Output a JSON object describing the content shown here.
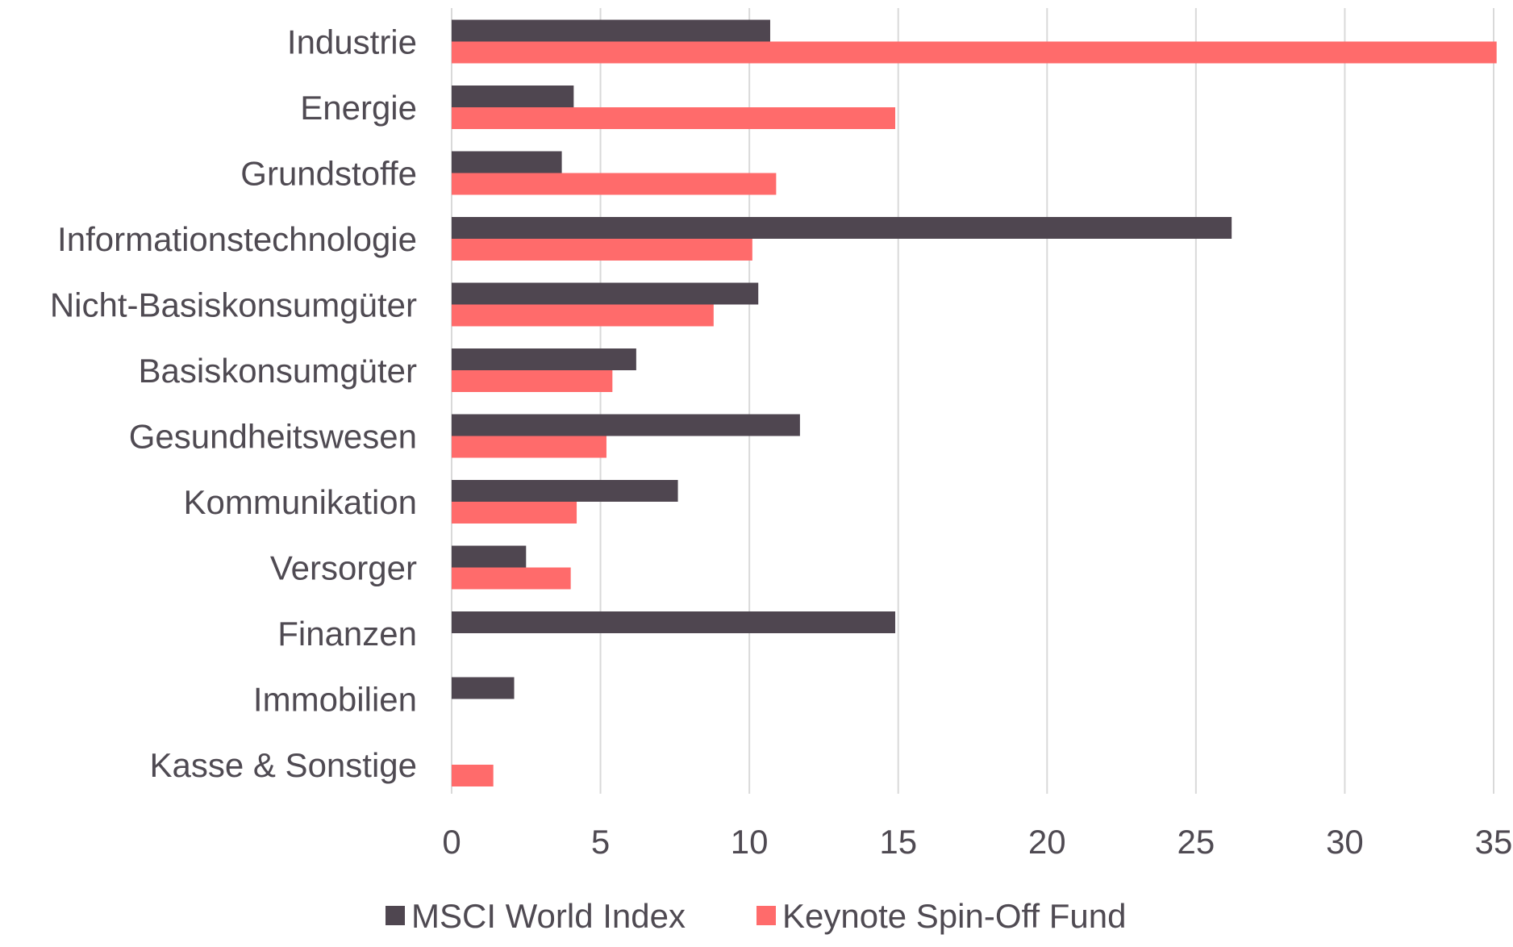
{
  "chart_data": {
    "type": "bar",
    "orientation": "horizontal",
    "categories": [
      "Industrie",
      "Energie",
      "Grundstoffe",
      "Informationstechnologie",
      "Nicht-Basiskonsumgüter",
      "Basiskonsumgüter",
      "Gesundheitswesen",
      "Kommunikation",
      "Versorger",
      "Finanzen",
      "Immobilien",
      "Kasse & Sonstige"
    ],
    "series": [
      {
        "name": "MSCI World Index",
        "color": "#4f4650",
        "values": [
          10.7,
          4.1,
          3.7,
          26.2,
          10.3,
          6.2,
          11.7,
          7.6,
          2.5,
          14.9,
          2.1,
          null
        ]
      },
      {
        "name": "Keynote Spin-Off Fund",
        "color": "#ff6b6b",
        "values": [
          35.1,
          14.9,
          10.9,
          10.1,
          8.8,
          5.4,
          5.2,
          4.2,
          4.0,
          null,
          null,
          1.4
        ]
      }
    ],
    "xlim": [
      0,
      35
    ],
    "xticks": [
      "0",
      "5",
      "10",
      "15",
      "20",
      "25",
      "30",
      "35"
    ],
    "grid": true,
    "legend_position": "bottom",
    "title": "",
    "xlabel": "",
    "ylabel": ""
  }
}
